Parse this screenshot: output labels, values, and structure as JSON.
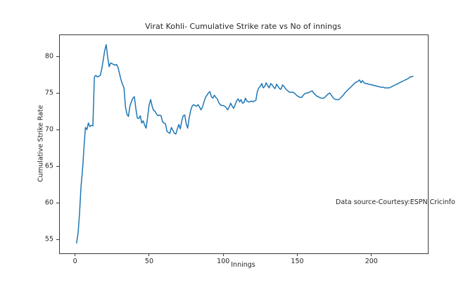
{
  "figure": {
    "background": "#ffffff",
    "text_color": "#262626",
    "spine_color": "#3a3a3a"
  },
  "chart_data": {
    "type": "line",
    "title": "Virat Kohli- Cumulative Strike rate vs No of innings",
    "xlabel": "Innings",
    "ylabel": "Cumulative Strike Rate",
    "x_ticks": [
      0,
      50,
      100,
      150,
      200
    ],
    "y_ticks": [
      55,
      60,
      65,
      70,
      75,
      80
    ],
    "xlim": [
      -10.3,
      238.1
    ],
    "ylim": [
      53.1,
      82.9
    ],
    "grid": false,
    "legend": "none",
    "line_color": "#1f77b4",
    "annotation": {
      "text": "Data source-Courtesy:ESPN Cricinfo",
      "x": 176,
      "y": 60.3
    },
    "series": [
      {
        "name": "Cumulative Strike Rate",
        "x_start": 1,
        "y": [
          54.5,
          55.8,
          58.5,
          62.2,
          64.4,
          67.5,
          70.3,
          70.0,
          70.9,
          70.4,
          70.6,
          70.5,
          77.2,
          77.4,
          77.2,
          77.3,
          77.4,
          78.3,
          79.5,
          80.8,
          81.6,
          79.9,
          78.6,
          79.1,
          79.0,
          78.9,
          78.8,
          78.9,
          78.5,
          77.6,
          76.8,
          76.2,
          75.7,
          73.1,
          72.1,
          71.8,
          73.2,
          73.8,
          74.3,
          74.5,
          72.9,
          71.6,
          71.5,
          71.9,
          70.9,
          71.2,
          70.6,
          70.2,
          71.8,
          73.4,
          74.1,
          73.2,
          72.6,
          72.5,
          72.1,
          71.9,
          72.0,
          71.9,
          71.1,
          70.9,
          70.8,
          69.8,
          69.6,
          69.5,
          70.3,
          69.9,
          69.5,
          69.4,
          70.1,
          70.7,
          70.1,
          71.2,
          71.9,
          72.0,
          70.8,
          70.2,
          71.6,
          72.6,
          73.2,
          73.4,
          73.3,
          73.2,
          73.4,
          73.1,
          72.7,
          73.1,
          73.8,
          74.4,
          74.7,
          75.0,
          75.2,
          74.5,
          74.3,
          74.7,
          74.4,
          74.2,
          73.7,
          73.4,
          73.3,
          73.3,
          73.2,
          73.0,
          72.7,
          73.1,
          73.6,
          73.2,
          72.9,
          73.4,
          73.9,
          74.2,
          73.8,
          74.1,
          73.6,
          73.7,
          74.3,
          73.9,
          73.8,
          73.8,
          73.9,
          73.8,
          73.9,
          74.0,
          75.2,
          75.7,
          75.9,
          76.3,
          75.7,
          75.9,
          76.4,
          76.0,
          75.7,
          76.3,
          76.1,
          75.8,
          75.6,
          76.2,
          75.9,
          75.6,
          75.5,
          76.1,
          75.9,
          75.6,
          75.4,
          75.2,
          75.1,
          75.1,
          75.1,
          75.0,
          74.8,
          74.6,
          74.5,
          74.4,
          74.4,
          74.7,
          74.9,
          75.0,
          75.0,
          75.1,
          75.2,
          75.3,
          75.0,
          74.8,
          74.6,
          74.5,
          74.4,
          74.3,
          74.3,
          74.3,
          74.5,
          74.7,
          74.9,
          75.0,
          74.7,
          74.4,
          74.2,
          74.1,
          74.1,
          74.1,
          74.3,
          74.5,
          74.7,
          75.0,
          75.2,
          75.4,
          75.6,
          75.8,
          76.0,
          76.2,
          76.4,
          76.5,
          76.6,
          76.8,
          76.4,
          76.7,
          76.4,
          76.3,
          76.3,
          76.2,
          76.2,
          76.1,
          76.1,
          76.0,
          76.0,
          75.9,
          75.9,
          75.8,
          75.8,
          75.8,
          75.7,
          75.7,
          75.7,
          75.7,
          75.8,
          75.9,
          76.0,
          76.1,
          76.2,
          76.3,
          76.4,
          76.5,
          76.6,
          76.7,
          76.8,
          76.9,
          77.0,
          77.2,
          77.2,
          77.3
        ]
      }
    ]
  }
}
